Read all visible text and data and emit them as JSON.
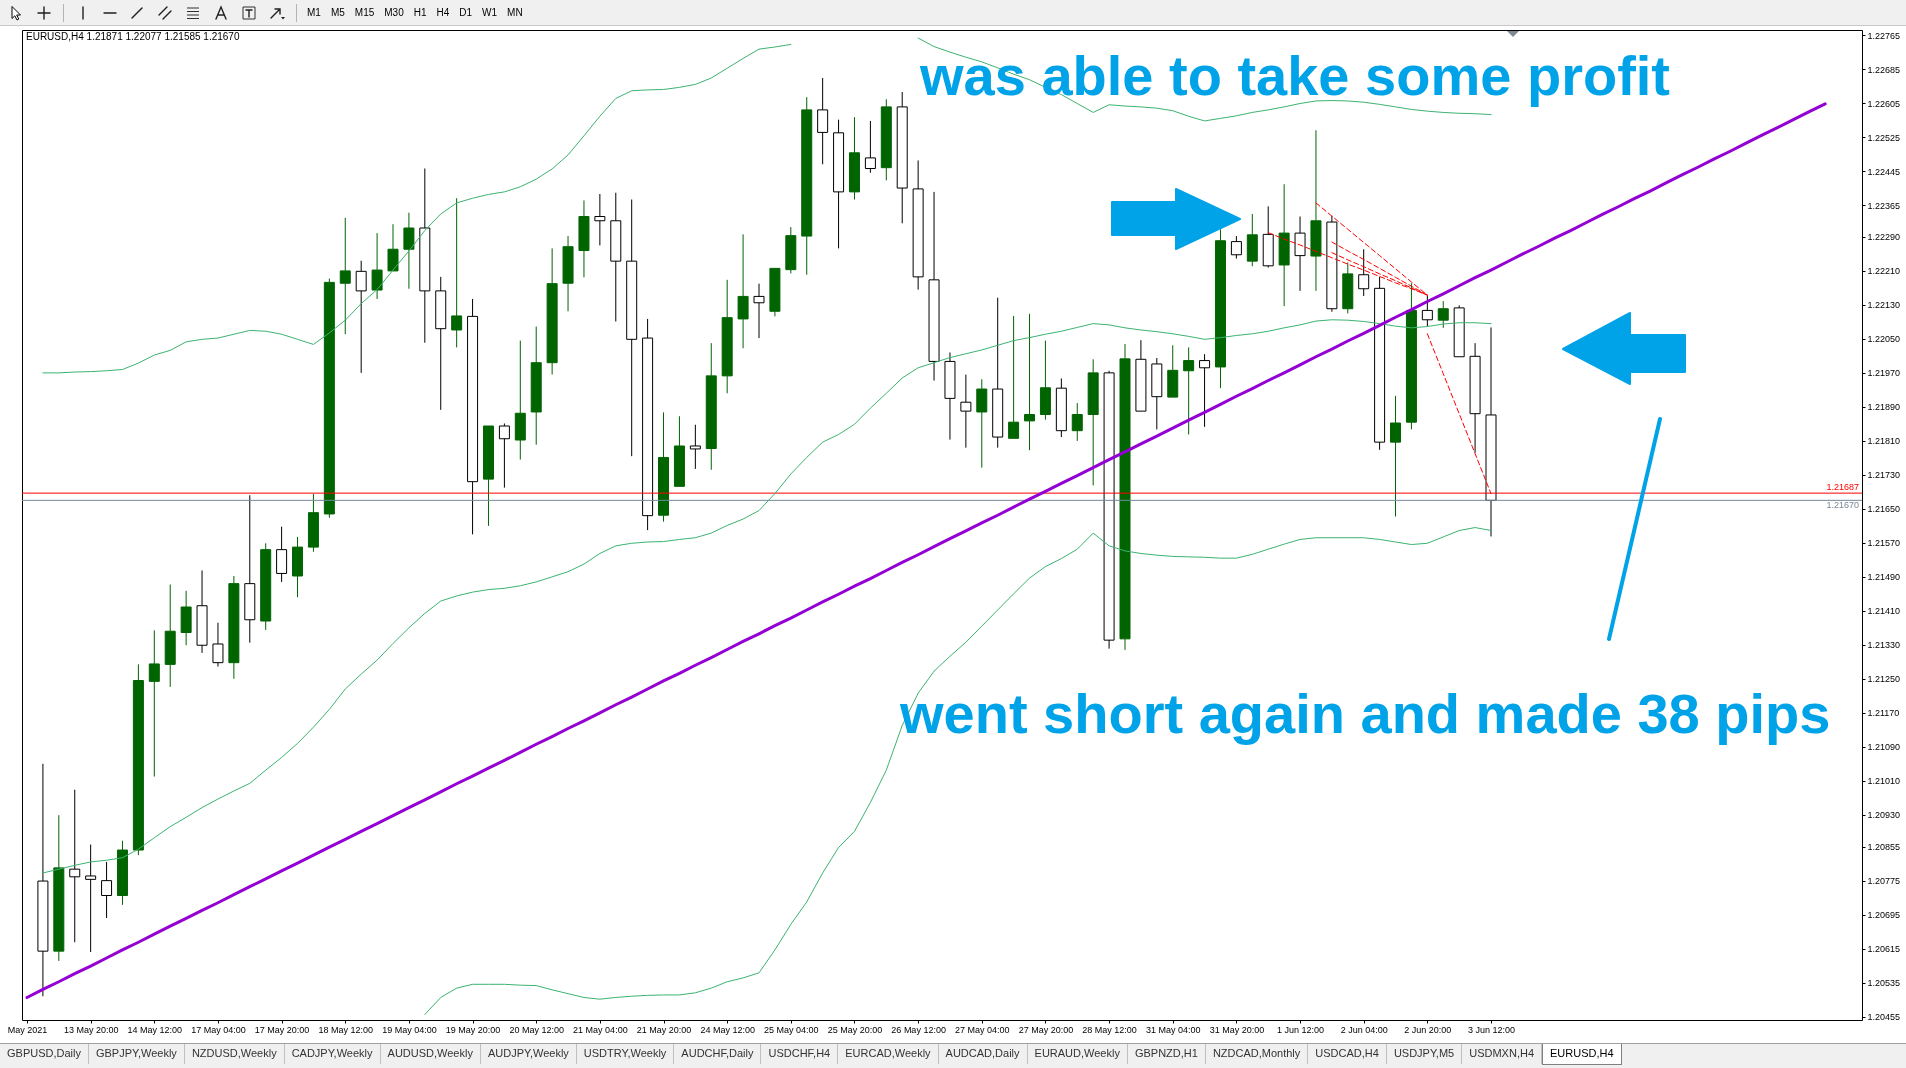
{
  "chart_data": {
    "type": "candlestick",
    "title": "EURUSD,H4 1.21871 1.22077 1.21585 1.21670",
    "categories": [
      "May 2021",
      null,
      null,
      null,
      "13 May 20:00",
      null,
      null,
      null,
      "14 May 12:00",
      null,
      null,
      null,
      "17 May 04:00",
      null,
      null,
      null,
      "17 May 20:00",
      null,
      null,
      null,
      "18 May 12:00",
      null,
      null,
      null,
      "19 May 04:00",
      null,
      null,
      null,
      "19 May 20:00",
      null,
      null,
      null,
      "20 May 12:00",
      null,
      null,
      null,
      "21 May 04:00",
      null,
      null,
      null,
      "21 May 20:00",
      null,
      null,
      null,
      "24 May 12:00",
      null,
      null,
      null,
      "25 May 04:00",
      null,
      null,
      null,
      "25 May 20:00",
      null,
      null,
      null,
      "26 May 12:00",
      null,
      null,
      null,
      "27 May 04:00",
      null,
      null,
      null,
      "27 May 20:00",
      null,
      null,
      null,
      "28 May 12:00",
      null,
      null,
      null,
      "31 May 04:00",
      null,
      null,
      null,
      "31 May 20:00",
      null,
      null,
      null,
      "1 Jun 12:00",
      null,
      null,
      null,
      "2 Jun 04:00",
      null,
      null,
      null,
      "2 Jun 20:00",
      null,
      null,
      null,
      "3 Jun 12:00",
      null,
      null,
      null,
      null,
      null,
      null,
      null,
      null,
      null,
      null,
      null,
      null,
      null,
      null,
      null,
      null,
      null,
      null,
      null,
      null,
      null,
      null,
      null
    ],
    "ohlc": [
      null,
      [
        1.20774,
        1.2105,
        1.20503,
        1.20609
      ],
      [
        1.20609,
        1.20929,
        1.20586,
        1.20805
      ],
      [
        1.20802,
        1.20989,
        1.2063,
        1.20784
      ],
      [
        1.20786,
        1.2086,
        1.20607,
        1.20778
      ],
      [
        1.20775,
        1.20819,
        1.20687,
        1.2074
      ],
      [
        1.2074,
        1.20869,
        1.20718,
        1.20847
      ],
      [
        1.20847,
        1.21284,
        1.20835,
        1.21246
      ],
      [
        1.21244,
        1.21364,
        1.2102,
        1.21285
      ],
      [
        1.21284,
        1.21472,
        1.21231,
        1.21362
      ],
      [
        1.21359,
        1.21457,
        1.21329,
        1.21419
      ],
      [
        1.21422,
        1.21505,
        1.21311,
        1.21329
      ],
      [
        1.21332,
        1.21382,
        1.21279,
        1.21288
      ],
      [
        1.21288,
        1.21492,
        1.2125,
        1.21474
      ],
      [
        1.21474,
        1.21682,
        1.21335,
        1.21389
      ],
      [
        1.21386,
        1.21569,
        1.21365,
        1.21554
      ],
      [
        1.21554,
        1.21608,
        1.21478,
        1.21498
      ],
      [
        1.21492,
        1.21584,
        1.21442,
        1.2156
      ],
      [
        1.2156,
        1.21685,
        1.21549,
        1.21641
      ],
      [
        1.21638,
        1.22192,
        1.21629,
        1.22183
      ],
      [
        1.22181,
        1.22335,
        1.22061,
        1.2221
      ],
      [
        1.22209,
        1.22234,
        1.2197,
        1.22163
      ],
      [
        1.22165,
        1.22299,
        1.22144,
        1.22212
      ],
      [
        1.2221,
        1.2232,
        1.2221,
        1.22261
      ],
      [
        1.22261,
        1.22347,
        1.22168,
        1.22311
      ],
      [
        1.22311,
        1.22451,
        1.22041,
        1.22163
      ],
      [
        1.22163,
        1.22196,
        1.21883,
        1.22074
      ],
      [
        1.22071,
        1.22381,
        1.2203,
        1.22104
      ],
      [
        1.22103,
        1.22144,
        1.2159,
        1.21714
      ],
      [
        1.2172,
        1.21845,
        1.2161,
        1.21845
      ],
      [
        1.21845,
        1.21851,
        1.217,
        1.21815
      ],
      [
        1.21812,
        1.22046,
        1.21766,
        1.21875
      ],
      [
        1.21878,
        1.22079,
        1.21801,
        1.21994
      ],
      [
        1.21994,
        1.22263,
        1.21966,
        1.2218
      ],
      [
        1.22181,
        1.22292,
        1.22115,
        1.22267
      ],
      [
        1.22258,
        1.22376,
        1.22195,
        1.22338
      ],
      [
        1.22338,
        1.22391,
        1.2227,
        1.22328
      ],
      [
        1.22328,
        1.22394,
        1.22091,
        1.22233
      ],
      [
        1.22233,
        1.22378,
        1.21774,
        1.22049
      ],
      [
        1.22052,
        1.22097,
        1.216,
        1.21634
      ],
      [
        1.21635,
        1.21877,
        1.2162,
        1.21771
      ],
      [
        1.21703,
        1.21868,
        1.21703,
        1.21798
      ],
      [
        1.21798,
        1.21848,
        1.21744,
        1.21791
      ],
      [
        1.21792,
        1.2204,
        1.21742,
        1.21963
      ],
      [
        1.21963,
        1.22189,
        1.21922,
        1.221
      ],
      [
        1.22097,
        1.22296,
        1.22028,
        1.2215
      ],
      [
        1.2215,
        1.2218,
        1.22052,
        1.22135
      ],
      [
        1.22115,
        1.22216,
        1.22103,
        1.22216
      ],
      [
        1.22213,
        1.22313,
        1.22204,
        1.22293
      ],
      [
        1.22292,
        1.22619,
        1.22201,
        1.22589
      ],
      [
        1.22589,
        1.22664,
        1.22461,
        1.22536
      ],
      [
        1.22535,
        1.22566,
        1.22263,
        1.22396
      ],
      [
        1.22396,
        1.22572,
        1.22378,
        1.22488
      ],
      [
        1.22476,
        1.22563,
        1.22441,
        1.22451
      ],
      [
        1.22453,
        1.22614,
        1.22423,
        1.22596
      ],
      [
        1.22596,
        1.22631,
        1.22322,
        1.22405
      ],
      [
        1.22403,
        1.2247,
        1.22166,
        1.22196
      ],
      [
        1.22189,
        1.22396,
        1.21952,
        1.21997
      ],
      [
        1.21997,
        1.22018,
        1.21813,
        1.2191
      ],
      [
        1.21901,
        1.21966,
        1.21794,
        1.2188
      ],
      [
        1.21878,
        1.21955,
        1.21747,
        1.21932
      ],
      [
        1.21932,
        1.22147,
        1.21794,
        1.21819
      ],
      [
        1.21816,
        1.22104,
        1.21816,
        1.21854
      ],
      [
        1.21857,
        1.22109,
        1.21788,
        1.21872
      ],
      [
        1.21872,
        1.22046,
        1.2186,
        1.21935
      ],
      [
        1.21934,
        1.21957,
        1.21819,
        1.21834
      ],
      [
        1.21834,
        1.21899,
        1.2181,
        1.21872
      ],
      [
        1.21872,
        1.22002,
        1.21705,
        1.2197
      ],
      [
        1.2197,
        1.21975,
        1.21321,
        1.21341
      ],
      [
        1.21344,
        1.22038,
        1.21318,
        1.22003
      ],
      [
        1.22002,
        1.22047,
        1.2188,
        1.2188
      ],
      [
        1.21991,
        1.22005,
        1.21837,
        1.21914
      ],
      [
        1.21913,
        1.22035,
        1.21913,
        1.21976
      ],
      [
        1.21975,
        1.2203,
        1.21825,
        1.21999
      ],
      [
        1.21999,
        1.22014,
        1.21843,
        1.21982
      ],
      [
        1.21984,
        1.22308,
        1.21934,
        1.22281
      ],
      [
        1.22279,
        1.22292,
        1.22239,
        1.22248
      ],
      [
        1.22233,
        1.22344,
        1.22221,
        1.22295
      ],
      [
        1.22296,
        1.22362,
        1.22218,
        1.22222
      ],
      [
        1.22224,
        1.22414,
        1.22127,
        1.22299
      ],
      [
        1.22299,
        1.22338,
        1.22163,
        1.22246
      ],
      [
        1.22245,
        1.22541,
        1.22163,
        1.22328
      ],
      [
        1.22325,
        1.2234,
        1.22114,
        1.22121
      ],
      [
        1.22121,
        1.2223,
        1.2211,
        1.22203
      ],
      [
        1.22201,
        1.22261,
        1.22151,
        1.22168
      ],
      [
        1.22169,
        1.22196,
        1.21789,
        1.21807
      ],
      [
        1.21807,
        1.21916,
        1.21632,
        1.21852
      ],
      [
        1.21854,
        1.22181,
        1.21837,
        1.22117
      ],
      [
        1.22117,
        1.22151,
        1.22079,
        1.22095
      ],
      [
        1.22094,
        1.22139,
        1.22076,
        1.22121
      ],
      [
        1.22123,
        1.22129,
        1.22008,
        1.22008
      ],
      [
        1.22009,
        1.2204,
        1.21782,
        1.21874
      ],
      [
        1.21871,
        1.22077,
        1.21585,
        1.2167
      ],
      null,
      null,
      null,
      null,
      null,
      null,
      null,
      null,
      null,
      null,
      null,
      null,
      null,
      null,
      null,
      null,
      null,
      null,
      null,
      null,
      null,
      null,
      null
    ],
    "colors": [
      null,
      "#000000",
      "#006400",
      "#000000",
      "#000000",
      "#000000",
      "#006400",
      "#006400",
      "#006400",
      "#006400",
      "#006400",
      "#000000",
      "#000000",
      "#006400",
      "#000000",
      "#006400",
      "#000000",
      "#006400",
      "#006400",
      "#006400",
      "#006400",
      "#000000",
      "#006400",
      "#006400",
      "#006400",
      "#000000",
      "#000000",
      "#006400",
      "#000000",
      "#006400",
      "#000000",
      "#006400",
      "#006400",
      "#006400",
      "#006400",
      "#006400",
      "#000000",
      "#000000",
      "#000000",
      "#000000",
      "#006400",
      "#006400",
      "#000000",
      "#006400",
      "#006400",
      "#006400",
      "#000000",
      "#006400",
      "#006400",
      "#006400",
      "#000000",
      "#000000",
      "#006400",
      "#000000",
      "#006400",
      "#000000",
      "#000000",
      "#000000",
      "#000000",
      "#000000",
      "#006400",
      "#000000",
      "#006400",
      "#006400",
      "#006400",
      "#000000",
      "#006400",
      "#006400",
      "#000000",
      "#006400",
      "#000000",
      "#000000",
      "#006400",
      "#006400",
      "#000000",
      "#006400",
      "#000000",
      "#006400",
      "#000000",
      "#006400",
      "#000000",
      "#006400",
      "#000000",
      "#006400",
      "#000000",
      "#000000",
      "#006400",
      "#006400",
      "#000000",
      "#006400",
      "#000000",
      "#000000",
      "#000000",
      null,
      null,
      null,
      null,
      null,
      null,
      null,
      null,
      null,
      null,
      null,
      null,
      null,
      null,
      null,
      null,
      null,
      null,
      null,
      null,
      null,
      null,
      null
    ],
    "series": [
      {
        "type": "line",
        "color": "#3cb371",
        "values": [
          null,
          1.2197,
          1.2197,
          1.21972,
          1.21973,
          1.21975,
          1.21978,
          1.21993,
          1.22012,
          1.22023,
          1.22043,
          1.22049,
          1.22052,
          1.22061,
          1.2207,
          1.22068,
          1.22061,
          1.22049,
          1.22037,
          1.22064,
          1.22094,
          1.22133,
          1.22166,
          1.22212,
          1.22257,
          1.22305,
          1.22344,
          1.2237,
          1.22381,
          1.2239,
          1.22396,
          1.22408,
          1.22426,
          1.2245,
          1.22483,
          1.22528,
          1.22574,
          1.22616,
          1.22634,
          1.22636,
          1.22637,
          1.22642,
          1.22649,
          1.22664,
          1.22687,
          1.2271,
          1.22732,
          1.22737,
          1.22743,
          null,
          null,
          null,
          null,
          null,
          null,
          null,
          1.22758,
          1.22738,
          1.22725,
          1.22713,
          1.22702,
          1.22688,
          1.22673,
          1.2266,
          1.22642,
          1.22625,
          1.22604,
          1.22583,
          1.22601,
          1.22598,
          1.22596,
          1.22593,
          1.22587,
          1.22574,
          1.22563,
          1.22569,
          1.22575,
          1.22583,
          1.22589,
          1.22596,
          1.22604,
          1.2261,
          1.22611,
          1.2261,
          1.22607,
          1.22602,
          1.22596,
          1.2259,
          1.22586,
          1.22583,
          1.22581,
          1.2258,
          1.22578,
          null,
          null,
          null,
          null,
          null,
          null,
          null,
          null,
          null,
          null,
          null,
          null,
          null,
          null,
          null,
          null,
          null,
          null,
          null,
          null,
          null,
          null,
          null
        ]
      },
      {
        "type": "line",
        "color": "#3cb371",
        "values": [
          null,
          1.20793,
          1.20802,
          1.20811,
          1.20819,
          1.20823,
          1.20829,
          1.20849,
          1.20876,
          1.20902,
          1.20924,
          1.20947,
          1.20967,
          1.20986,
          1.21004,
          1.21035,
          1.21065,
          1.21098,
          1.21136,
          1.21178,
          1.21226,
          1.21261,
          1.21294,
          1.21333,
          1.2137,
          1.21404,
          1.21433,
          1.21445,
          1.21454,
          1.2146,
          1.21463,
          1.21469,
          1.21478,
          1.2149,
          1.21502,
          1.2152,
          1.21545,
          1.21563,
          1.21569,
          1.21572,
          1.21573,
          1.21578,
          1.21582,
          1.21593,
          1.21611,
          1.21626,
          1.21646,
          1.21686,
          1.21732,
          1.21771,
          1.21807,
          1.21825,
          1.21849,
          1.21887,
          1.21922,
          1.21958,
          1.21982,
          1.21994,
          1.22006,
          1.22015,
          1.22024,
          1.22035,
          1.22046,
          1.22053,
          1.22061,
          1.22068,
          1.22077,
          1.22086,
          1.22083,
          1.22076,
          1.22071,
          1.22067,
          1.22062,
          1.22056,
          1.22049,
          1.22053,
          1.22058,
          1.22062,
          1.22068,
          1.22076,
          1.22083,
          1.22092,
          1.22095,
          1.22094,
          1.22091,
          1.22086,
          1.2208,
          1.22076,
          1.22079,
          1.22085,
          1.22088,
          1.22088,
          1.22086,
          null,
          null,
          null,
          null,
          null,
          null,
          null,
          null,
          null,
          null,
          null,
          null,
          null,
          null,
          null,
          null,
          null,
          null,
          null,
          null,
          null,
          null,
          null
        ]
      },
      {
        "type": "line",
        "color": "#3cb371",
        "values": [
          null,
          null,
          null,
          null,
          null,
          null,
          null,
          null,
          null,
          null,
          null,
          null,
          null,
          null,
          null,
          null,
          null,
          null,
          null,
          null,
          null,
          null,
          null,
          null,
          null,
          1.2046,
          1.205,
          1.20522,
          1.20531,
          1.20531,
          1.20531,
          1.20529,
          1.20528,
          1.20518,
          1.20509,
          1.205,
          1.20496,
          1.205,
          1.20503,
          1.20505,
          1.20506,
          1.20506,
          1.20511,
          1.20522,
          1.20537,
          1.20546,
          1.20558,
          1.20612,
          1.20672,
          1.20725,
          1.20793,
          1.20853,
          1.20891,
          1.20959,
          1.21035,
          1.2114,
          1.21216,
          1.21268,
          1.21303,
          1.21336,
          1.21374,
          1.21412,
          1.2145,
          1.21487,
          1.21514,
          1.21533,
          1.21555,
          1.21593,
          1.21563,
          1.21551,
          1.21545,
          1.21541,
          1.21538,
          1.21537,
          1.21536,
          1.21534,
          1.21534,
          1.21543,
          1.21555,
          1.21567,
          1.21578,
          1.21582,
          1.21582,
          1.21582,
          1.21582,
          1.21578,
          1.21572,
          1.21566,
          1.21569,
          1.21584,
          1.21599,
          1.21606,
          1.21599,
          null,
          null,
          null,
          null,
          null,
          null,
          null,
          null,
          null,
          null,
          null,
          null,
          null,
          null,
          null,
          null,
          null,
          null,
          null,
          null,
          null,
          null,
          null
        ]
      },
      {
        "type": "line",
        "color": "#9400d3",
        "values": [
          1.205,
          1.20519,
          1.20537,
          1.20556,
          1.20574,
          1.20593,
          1.20612,
          1.2063,
          1.20649,
          1.20668,
          1.20686,
          1.20705,
          1.20723,
          1.20742,
          1.20761,
          1.20779,
          1.20798,
          1.20816,
          1.20835,
          1.20854,
          1.20872,
          1.20891,
          1.20909,
          1.20928,
          1.20947,
          1.20965,
          1.20984,
          1.21003,
          1.21021,
          1.2104,
          1.21058,
          1.21077,
          1.21096,
          1.21114,
          1.21133,
          1.21151,
          1.2117,
          1.21189,
          1.21207,
          1.21226,
          1.21245,
          1.21263,
          1.21282,
          1.213,
          1.21319,
          1.21338,
          1.21356,
          1.21375,
          1.21393,
          1.21412,
          1.21431,
          1.21449,
          1.21468,
          1.21486,
          1.21505,
          1.21524,
          1.21542,
          1.21561,
          1.2158,
          1.21598,
          1.21617,
          1.21635,
          1.21654,
          1.21673,
          1.21691,
          1.2171,
          1.21728,
          1.21747,
          1.21766,
          1.21784,
          1.21803,
          1.21821,
          1.2184,
          1.21859,
          1.21877,
          1.21896,
          1.21915,
          1.21933,
          1.21952,
          1.2197,
          1.21989,
          1.22008,
          1.22026,
          1.22045,
          1.22063,
          1.22082,
          1.22101,
          1.22119,
          1.22138,
          1.22156,
          1.22175,
          1.22194,
          1.22212,
          1.22231,
          1.2225,
          1.22268,
          1.22287,
          1.22305,
          1.22324,
          1.22343,
          1.22361,
          1.2238,
          1.22398,
          1.22417,
          1.22436,
          1.22454,
          1.22473,
          1.22491,
          1.2251,
          1.22529,
          1.22547,
          1.22566,
          1.22585,
          1.22603,
          null,
          null
        ]
      },
      {
        "type": "line",
        "color": "#ff0000",
        "line_style": "dashed",
        "values": [
          null,
          null,
          null,
          null,
          null,
          null,
          null,
          null,
          null,
          null,
          null,
          null,
          null,
          null,
          null,
          null,
          null,
          null,
          null,
          null,
          null,
          null,
          null,
          null,
          null,
          null,
          null,
          null,
          null,
          null,
          null,
          null,
          null,
          null,
          null,
          null,
          null,
          null,
          null,
          null,
          null,
          null,
          null,
          null,
          null,
          null,
          null,
          null,
          null,
          null,
          null,
          null,
          null,
          null,
          null,
          null,
          null,
          null,
          null,
          null,
          null,
          null,
          null,
          null,
          null,
          null,
          null,
          null,
          null,
          null,
          null,
          null,
          null,
          null,
          null,
          null,
          null,
          null,
          1.223,
          1.22285,
          1.22271,
          1.22256,
          1.22241,
          1.22226,
          1.22212,
          1.22197,
          1.22182,
          1.22168,
          1.22153,
          null,
          null,
          null,
          null,
          null,
          null,
          null,
          null,
          null,
          null,
          null,
          null,
          null,
          null,
          null,
          null,
          null,
          null,
          null,
          null,
          null,
          null,
          null,
          null,
          null,
          null,
          null
        ]
      },
      {
        "type": "line",
        "color": "#ff0000",
        "line_style": "dashed",
        "values": [
          null,
          null,
          null,
          null,
          null,
          null,
          null,
          null,
          null,
          null,
          null,
          null,
          null,
          null,
          null,
          null,
          null,
          null,
          null,
          null,
          null,
          null,
          null,
          null,
          null,
          null,
          null,
          null,
          null,
          null,
          null,
          null,
          null,
          null,
          null,
          null,
          null,
          null,
          null,
          null,
          null,
          null,
          null,
          null,
          null,
          null,
          null,
          null,
          null,
          null,
          null,
          null,
          null,
          null,
          null,
          null,
          null,
          null,
          null,
          null,
          null,
          null,
          null,
          null,
          null,
          null,
          null,
          null,
          null,
          null,
          null,
          null,
          null,
          null,
          null,
          null,
          null,
          null,
          null,
          null,
          null,
          1.2237,
          1.22339,
          1.22308,
          1.22277,
          1.22246,
          1.22215,
          1.22184,
          1.22153,
          null,
          null,
          null,
          null,
          null,
          null,
          null,
          null,
          null,
          null,
          null,
          null,
          null,
          null,
          null,
          null,
          null,
          null,
          null,
          null,
          null,
          null,
          null,
          null,
          null,
          null,
          null
        ]
      },
      {
        "type": "line",
        "color": "#ff0000",
        "line_style": "dashed",
        "values": [
          null,
          null,
          null,
          null,
          null,
          null,
          null,
          null,
          null,
          null,
          null,
          null,
          null,
          null,
          null,
          null,
          null,
          null,
          null,
          null,
          null,
          null,
          null,
          null,
          null,
          null,
          null,
          null,
          null,
          null,
          null,
          null,
          null,
          null,
          null,
          null,
          null,
          null,
          null,
          null,
          null,
          null,
          null,
          null,
          null,
          null,
          null,
          null,
          null,
          null,
          null,
          null,
          null,
          null,
          null,
          null,
          null,
          null,
          null,
          null,
          null,
          null,
          null,
          null,
          null,
          null,
          null,
          null,
          null,
          null,
          null,
          null,
          null,
          null,
          null,
          null,
          null,
          null,
          null,
          null,
          null,
          null,
          1.22278,
          1.22257,
          1.22237,
          1.22216,
          1.22195,
          1.22174,
          1.22153,
          null,
          null,
          null,
          null,
          null,
          null,
          null,
          null,
          null,
          null,
          null,
          null,
          null,
          null,
          null,
          null,
          null,
          null,
          null,
          null,
          null,
          null,
          null,
          null,
          null,
          null,
          null
        ]
      },
      {
        "type": "line",
        "color": "#ff0000",
        "line_style": "dashed",
        "values": [
          null,
          null,
          null,
          null,
          null,
          null,
          null,
          null,
          null,
          null,
          null,
          null,
          null,
          null,
          null,
          null,
          null,
          null,
          null,
          null,
          null,
          null,
          null,
          null,
          null,
          null,
          null,
          null,
          null,
          null,
          null,
          null,
          null,
          null,
          null,
          null,
          null,
          null,
          null,
          null,
          null,
          null,
          null,
          null,
          null,
          null,
          null,
          null,
          null,
          null,
          null,
          null,
          null,
          null,
          null,
          null,
          null,
          null,
          null,
          null,
          null,
          null,
          null,
          null,
          null,
          null,
          null,
          null,
          null,
          null,
          null,
          null,
          null,
          null,
          null,
          null,
          null,
          null,
          null,
          null,
          null,
          null,
          1.22253,
          1.22236,
          1.2222,
          1.22203,
          1.22187,
          1.2217,
          1.22153,
          null,
          null,
          null,
          null,
          null,
          null,
          null,
          null,
          null,
          null,
          null,
          null,
          null,
          null,
          null,
          null,
          null,
          null,
          null,
          null,
          null,
          null,
          null,
          null,
          null,
          null,
          null
        ]
      },
      {
        "type": "line",
        "color": "#ff0000",
        "line_style": "dashed",
        "values": [
          null,
          null,
          null,
          null,
          null,
          null,
          null,
          null,
          null,
          null,
          null,
          null,
          null,
          null,
          null,
          null,
          null,
          null,
          null,
          null,
          null,
          null,
          null,
          null,
          null,
          null,
          null,
          null,
          null,
          null,
          null,
          null,
          null,
          null,
          null,
          null,
          null,
          null,
          null,
          null,
          null,
          null,
          null,
          null,
          null,
          null,
          null,
          null,
          null,
          null,
          null,
          null,
          null,
          null,
          null,
          null,
          null,
          null,
          null,
          null,
          null,
          null,
          null,
          null,
          null,
          null,
          null,
          null,
          null,
          null,
          null,
          null,
          null,
          null,
          null,
          null,
          null,
          null,
          null,
          null,
          null,
          null,
          null,
          null,
          null,
          null,
          null,
          null,
          1.22062,
          1.21968,
          1.21874,
          1.2178,
          1.21686,
          null,
          null,
          null,
          null,
          null,
          null,
          null,
          null,
          null,
          null,
          null,
          null,
          null,
          null,
          null,
          null,
          null,
          null,
          null,
          null,
          null,
          null,
          null
        ]
      }
    ],
    "ylim": [
      1.20447,
      1.22777
    ],
    "yticks": [
      1.20455,
      1.20535,
      1.20615,
      1.20695,
      1.20775,
      1.20855,
      {
        "value": 1.2093,
        "label": "1.20930"
      },
      {
        "value": 1.2101,
        "label": "1.21010"
      },
      {
        "value": 1.2109,
        "label": "1.21090"
      },
      {
        "value": 1.2117,
        "label": "1.21170"
      },
      {
        "value": 1.2125,
        "label": "1.21250"
      },
      {
        "value": 1.2133,
        "label": "1.21330"
      },
      {
        "value": 1.2141,
        "label": "1.21410"
      },
      {
        "value": 1.2149,
        "label": "1.21490"
      },
      {
        "value": 1.2157,
        "label": "1.21570"
      },
      {
        "value": 1.2165,
        "label": "1.21650"
      },
      {
        "value": 1.2173,
        "label": "1.21730"
      },
      {
        "value": 1.2181,
        "label": "1.21810"
      },
      {
        "value": 1.2189,
        "label": "1.21890"
      },
      {
        "value": 1.2197,
        "label": "1.21970"
      },
      {
        "value": 1.2205,
        "label": "1.22050"
      },
      {
        "value": 1.2213,
        "label": "1.22130"
      },
      {
        "value": 1.2221,
        "label": "1.22210"
      },
      {
        "value": 1.2229,
        "label": "1.22290"
      },
      1.22365,
      1.22445,
      1.22525,
      1.22605,
      1.22685,
      1.22765
    ],
    "ref_lines": [
      {
        "axis": "y",
        "value": 1.21687,
        "label": "1.21687",
        "color": "#ff0000"
      },
      {
        "axis": "y",
        "value": 1.2167,
        "label": "1.21670",
        "color": "#778899"
      }
    ],
    "annotations": [
      "was able to take some profit",
      "went short again and made 38 pips",
      "M1",
      "M5",
      "M15",
      "M30",
      "H1",
      "H4",
      "D1",
      "W1",
      "MN",
      "GBPUSD,Daily",
      "GBPJPY,Weekly",
      "NZDUSD,Weekly",
      "CADJPY,Weekly",
      "AUDUSD,Weekly",
      "AUDJPY,Weekly",
      "USDTRY,Weekly",
      "AUDCHF,Daily",
      "USDCHF,H4",
      "EURCAD,Weekly",
      "AUDCAD,Daily",
      "EURAUD,Weekly",
      "GBPNZD,H1",
      "NZDCAD,Monthly",
      "USDCAD,H4",
      "USDJPY,M5",
      "USDMXN,H4",
      "EURUSD,H4"
    ]
  }
}
